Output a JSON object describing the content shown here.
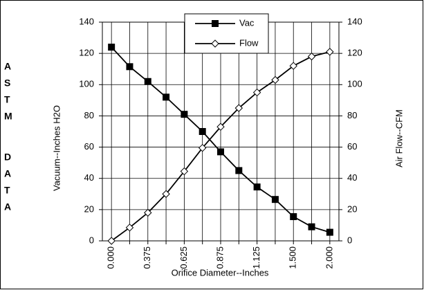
{
  "chart_data": {
    "type": "line",
    "side_text": [
      "A",
      "S",
      "T",
      "M",
      "D",
      "A",
      "T",
      "A"
    ],
    "xlabel": "Orifice Diameter--Inches",
    "ylabel": "Vacuum--Inches H2O",
    "y2label": "Air Flow--CFM",
    "categories": [
      "0.000",
      null,
      "0.375",
      null,
      "0.625",
      null,
      "0.875",
      null,
      "1.125",
      null,
      "1.500",
      null,
      "2.000"
    ],
    "series": [
      {
        "name": "Vac",
        "color": "#000000",
        "marker": "square",
        "values": [
          124,
          111.5,
          102,
          92,
          81,
          70,
          57,
          45,
          34.5,
          26.5,
          15.5,
          9,
          5.5
        ]
      },
      {
        "name": "Flow",
        "color": "#000000",
        "marker": "diamond",
        "axis": "y2",
        "values": [
          0,
          8.5,
          18,
          30,
          44.5,
          59.5,
          73,
          85,
          95,
          103,
          112,
          118,
          121
        ]
      }
    ],
    "ylim": [
      0,
      140
    ],
    "yticks": [
      0,
      20,
      40,
      60,
      80,
      100,
      120,
      140
    ],
    "y2lim": [
      0,
      140
    ],
    "y2ticks": [
      0,
      20,
      40,
      60,
      80,
      100,
      120,
      140
    ],
    "grid": true,
    "legend": "top"
  }
}
